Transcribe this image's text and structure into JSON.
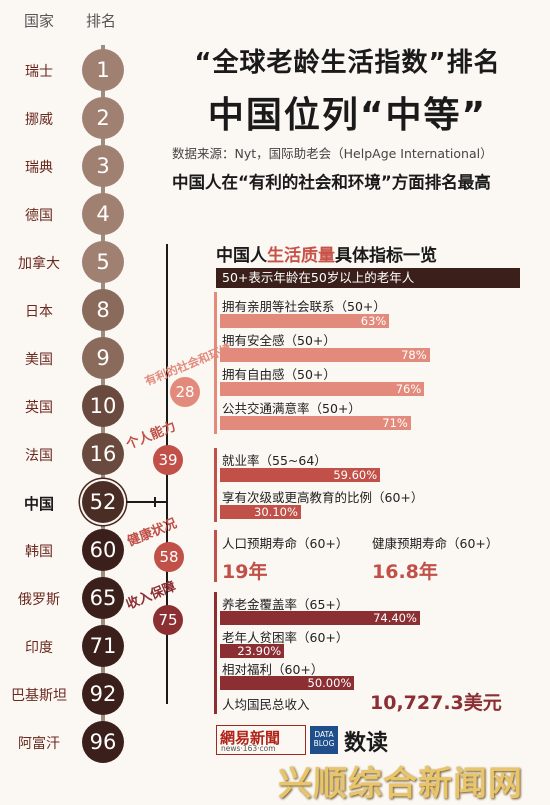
{
  "header": {
    "country_col": "国家",
    "rank_col": "排名"
  },
  "title": {
    "line1": "“全球老龄生活指数”排名",
    "line2": "中国位列“中等”",
    "source": "数据来源：Nyt，国际助老会（HelpAge International）",
    "subhead": "中国人在“有利的社会和环境”方面排名最高"
  },
  "ranking": [
    {
      "country": "瑞士",
      "rank": "1"
    },
    {
      "country": "挪威",
      "rank": "2"
    },
    {
      "country": "瑞典",
      "rank": "3"
    },
    {
      "country": "德国",
      "rank": "4"
    },
    {
      "country": "加拿大",
      "rank": "5"
    },
    {
      "country": "日本",
      "rank": "8"
    },
    {
      "country": "美国",
      "rank": "9"
    },
    {
      "country": "英国",
      "rank": "10"
    },
    {
      "country": "法国",
      "rank": "16"
    },
    {
      "country": "中国",
      "rank": "52"
    },
    {
      "country": "韩国",
      "rank": "60"
    },
    {
      "country": "俄罗斯",
      "rank": "65"
    },
    {
      "country": "印度",
      "rank": "71"
    },
    {
      "country": "巴基斯坦",
      "rank": "92"
    },
    {
      "country": "阿富汗",
      "rank": "96"
    }
  ],
  "highlight_country": "中国",
  "colors": {
    "pink": "#e28b7c",
    "red": "#c05048",
    "darkred": "#8b2f33",
    "brown": "#3b1f1a",
    "gray_circle": "#a08070"
  },
  "section": {
    "title_pre": "中国人",
    "title_hl": "生活质量",
    "title_post": "具体指标一览",
    "note": "50+表示年龄在50岁以上的老年人"
  },
  "chart_data": {
    "type": "bar",
    "groups": [
      {
        "name": "有利的社会和环境",
        "rank": "28",
        "items": [
          {
            "label": "拥有亲朋等社会联系（50+）",
            "value": 63,
            "display": "63%"
          },
          {
            "label": "拥有安全感（50+）",
            "value": 78,
            "display": "78%"
          },
          {
            "label": "拥有自由感（50+）",
            "value": 76,
            "display": "76%"
          },
          {
            "label": "公共交通满意率（50+）",
            "value": 71,
            "display": "71%"
          }
        ]
      },
      {
        "name": "个人能力",
        "rank": "39",
        "items": [
          {
            "label": "就业率（55~64）",
            "value": 59.6,
            "display": "59.60%"
          },
          {
            "label": "享有次级或更高教育的比例（60+）",
            "value": 30.1,
            "display": "30.10%"
          }
        ]
      },
      {
        "name": "健康状况",
        "rank": "58",
        "items": [
          {
            "label": "人口预期寿命（60+）",
            "display": "19年"
          },
          {
            "label": "健康预期寿命（60+）",
            "display": "16.8年"
          }
        ]
      },
      {
        "name": "收入保障",
        "rank": "75",
        "items": [
          {
            "label": "养老金覆盖率（65+）",
            "value": 74.4,
            "display": "74.40%"
          },
          {
            "label": "老年人贫困率（60+）",
            "value": 23.9,
            "display": "23.90%"
          },
          {
            "label": "相对福利（60+）",
            "value": 50.0,
            "display": "50.00%"
          },
          {
            "label": "人均国民总收入",
            "display": "10,727.3美元"
          }
        ]
      }
    ]
  },
  "footer": {
    "logo_main": "網易新聞",
    "logo_sub": "news·163·com",
    "databox": "DATA BLOG",
    "shudu": "数读",
    "watermark": "兴顺综合新闻网"
  }
}
